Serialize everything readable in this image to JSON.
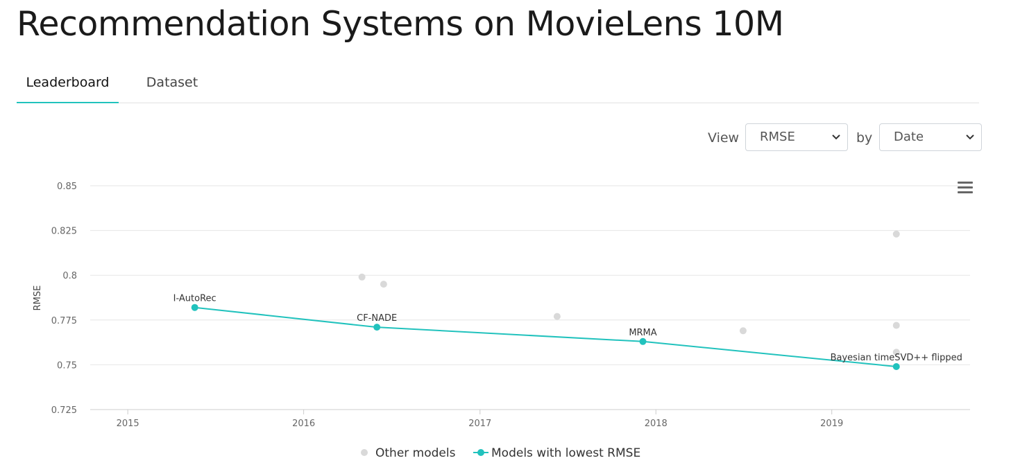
{
  "page": {
    "title": "Recommendation Systems on MovieLens 10M"
  },
  "tabs": [
    {
      "label": "Leaderboard",
      "active": true
    },
    {
      "label": "Dataset",
      "active": false
    }
  ],
  "controls": {
    "view_label": "View",
    "view_value": "RMSE",
    "by_label": "by",
    "by_value": "Date"
  },
  "colors": {
    "accent": "#21c2bd",
    "other_models": "#d9d9d9",
    "grid": "#e6e6e6",
    "axis_text": "#666666"
  },
  "chart_menu_icon": "hamburger-menu-icon",
  "chart_data": {
    "type": "scatter",
    "ylabel": "RMSE",
    "ylim": [
      0.725,
      0.85
    ],
    "yticks": [
      0.725,
      0.75,
      0.775,
      0.8,
      0.825,
      0.85
    ],
    "ytick_labels": [
      "0.725",
      "0.75",
      "0.775",
      "0.8",
      "0.825",
      "0.85"
    ],
    "xlim": [
      "2014-10-15",
      "2019-10-15"
    ],
    "xticks": [
      "2015-01-01",
      "2016-01-01",
      "2017-01-01",
      "2018-01-01",
      "2019-01-01"
    ],
    "xtick_labels": [
      "2015",
      "2016",
      "2017",
      "2018",
      "2019"
    ],
    "legend_position": "bottom-center",
    "grid": true,
    "series": [
      {
        "name": "Other models",
        "kind": "scatter",
        "points": [
          {
            "date": "2016-05-01",
            "y": 0.799
          },
          {
            "date": "2016-06-15",
            "y": 0.795
          },
          {
            "date": "2017-06-10",
            "y": 0.777
          },
          {
            "date": "2018-07-01",
            "y": 0.769
          },
          {
            "date": "2019-05-15",
            "y": 0.823
          },
          {
            "date": "2019-05-15",
            "y": 0.772
          },
          {
            "date": "2019-05-15",
            "y": 0.757
          }
        ]
      },
      {
        "name": "Models with lowest RMSE",
        "kind": "line",
        "points": [
          {
            "date": "2015-05-20",
            "y": 0.782,
            "label": "I-AutoRec"
          },
          {
            "date": "2016-06-01",
            "y": 0.771,
            "label": "CF-NADE"
          },
          {
            "date": "2017-12-05",
            "y": 0.763,
            "label": "MRMA"
          },
          {
            "date": "2019-05-15",
            "y": 0.749,
            "label": "Bayesian timeSVD++ flipped"
          }
        ]
      }
    ]
  }
}
